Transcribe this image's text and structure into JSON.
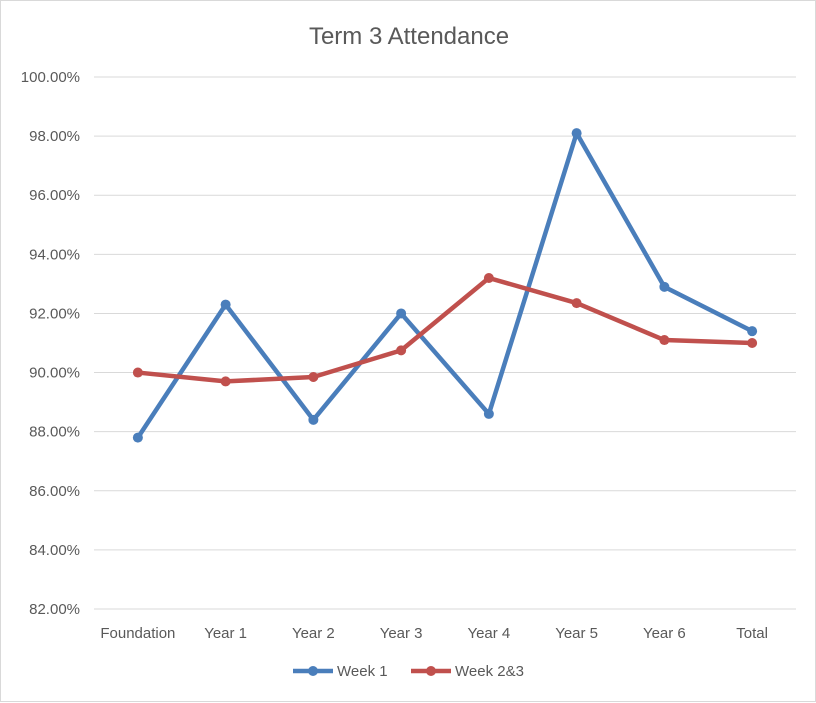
{
  "chart_data": {
    "type": "line",
    "title": "Term 3 Attendance",
    "xlabel": "",
    "ylabel": "",
    "categories": [
      "Foundation",
      "Year 1",
      "Year 2",
      "Year 3",
      "Year 4",
      "Year 5",
      "Year 6",
      "Total"
    ],
    "y_ticks": [
      "82.00%",
      "84.00%",
      "86.00%",
      "88.00%",
      "90.00%",
      "92.00%",
      "94.00%",
      "96.00%",
      "98.00%",
      "100.00%"
    ],
    "ylim": [
      82,
      100
    ],
    "grid": true,
    "legend_position": "bottom",
    "series": [
      {
        "name": "Week 1",
        "color": "#4a7ebb",
        "values": [
          87.8,
          92.3,
          88.4,
          92.0,
          88.6,
          98.1,
          92.9,
          91.4
        ]
      },
      {
        "name": "Week 2&3",
        "color": "#c0504d",
        "values": [
          90.0,
          89.7,
          89.85,
          90.75,
          93.2,
          92.35,
          91.1,
          91.0
        ]
      }
    ]
  }
}
